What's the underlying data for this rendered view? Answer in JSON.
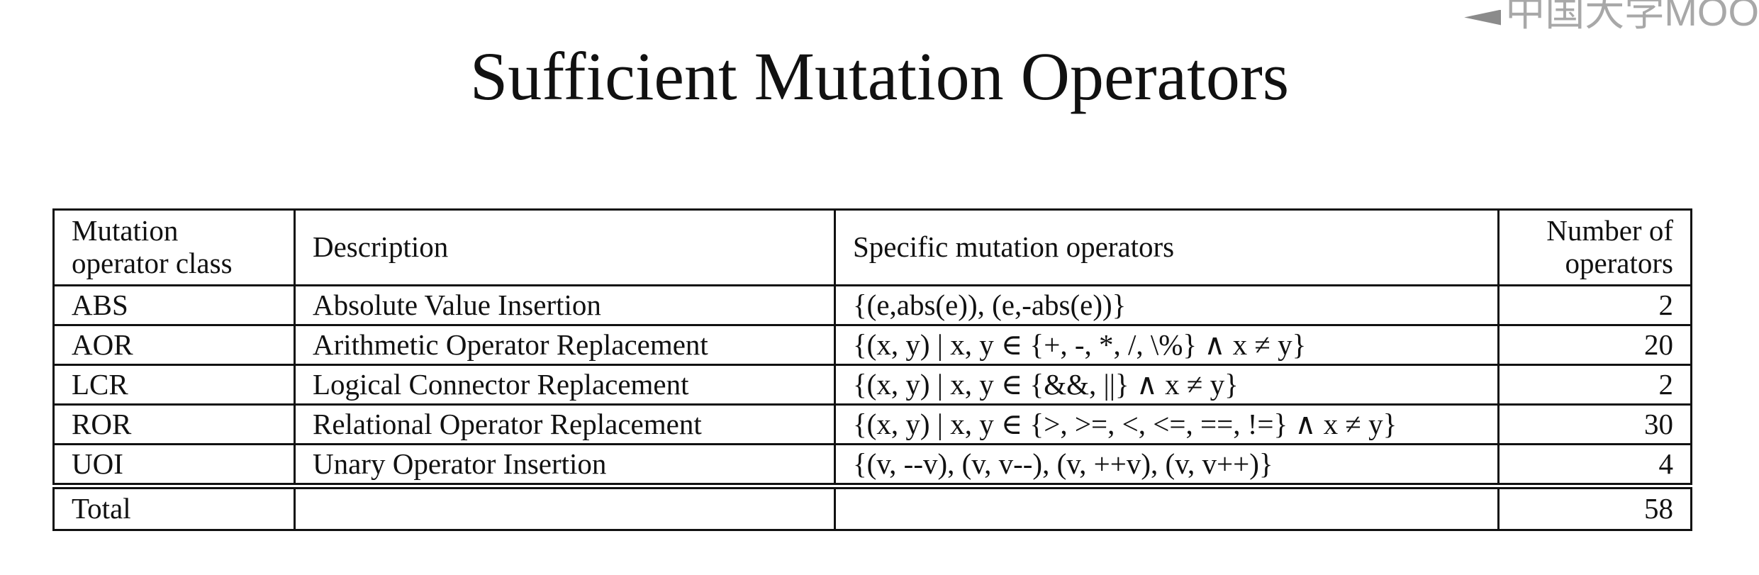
{
  "watermark": {
    "text": "中国大学MOO"
  },
  "slide": {
    "title": "Sufficient Mutation Operators"
  },
  "table": {
    "headers": {
      "class_line1": "Mutation",
      "class_line2": "operator class",
      "description": "Description",
      "operators": "Specific mutation operators",
      "count_line1": "Number of",
      "count_line2": "operators"
    },
    "rows": [
      {
        "class": "ABS",
        "description": "Absolute Value Insertion",
        "operators": "{(e,abs(e)), (e,-abs(e))}",
        "count": "2"
      },
      {
        "class": "AOR",
        "description": "Arithmetic Operator Replacement",
        "operators": "{(x, y) | x, y ∈ {+, -, *, /, \\%} ∧ x ≠ y}",
        "count": "20"
      },
      {
        "class": "LCR",
        "description": "Logical Connector Replacement",
        "operators": "{(x, y) | x, y ∈ {&&, ||} ∧ x ≠ y}",
        "count": "2"
      },
      {
        "class": "ROR",
        "description": "Relational Operator Replacement",
        "operators": "{(x, y) | x, y ∈ {>, >=, <, <=, ==, !=} ∧ x ≠ y}",
        "count": "30"
      },
      {
        "class": "UOI",
        "description": "Unary Operator Insertion",
        "operators": "{(v, --v), (v, v--), (v, ++v), (v, v++)}",
        "count": "4"
      }
    ],
    "total": {
      "label": "Total",
      "description": "",
      "operators": "",
      "count": "58"
    }
  }
}
